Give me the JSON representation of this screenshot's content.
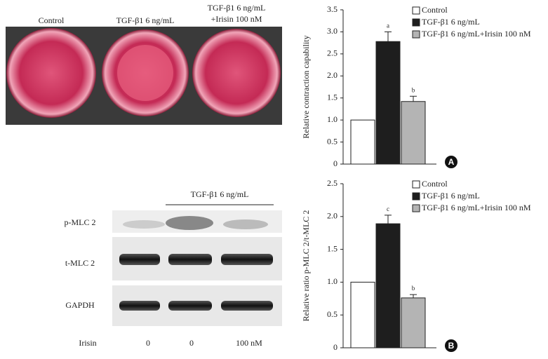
{
  "photo_labels": [
    "Control",
    "TGF-β1 6 ng/mL",
    [
      "TGF-β1 6 ng/mL",
      "+Irisin 100 nM"
    ]
  ],
  "blot": {
    "header": "TGF-β1 6 ng/mL",
    "rows": [
      "p-MLC 2",
      "t-MLC 2",
      "GAPDH"
    ],
    "treatment_label": "Irisin",
    "treatment_values": [
      "0",
      "0",
      "100 nM"
    ]
  },
  "chart_data": [
    {
      "type": "bar",
      "panel_label": "A",
      "y_label": "Relative contraction capability",
      "ylim": [
        0,
        3.5
      ],
      "yticks": [
        0,
        0.5,
        {
          "value": 1,
          "label": "1.0"
        },
        1.5,
        {
          "value": 2,
          "label": "2.0"
        },
        2.5,
        {
          "value": 3,
          "label": "3.0"
        },
        3.5
      ],
      "legend": "upper right",
      "series": [
        {
          "name": "Control",
          "color": "#ffffff",
          "values": [
            1.0
          ]
        },
        {
          "name": "TGF-β1 6 ng/mL",
          "color": "#1e1e1e",
          "values": [
            2.78
          ],
          "errors": [
            0.22
          ],
          "annotation": "a"
        },
        {
          "name": "TGF-β1 6 ng/mL+Irisin 100 nM",
          "color": "#b4b4b4",
          "values": [
            1.42
          ],
          "errors": [
            0.12
          ],
          "annotation": "b"
        }
      ]
    },
    {
      "type": "bar",
      "panel_label": "B",
      "y_label": "Relative ratio p-MLC 2/t-MLC 2",
      "ylim": [
        0,
        2.5
      ],
      "yticks": [
        0,
        0.5,
        {
          "value": 1,
          "label": "1.0"
        },
        1.5,
        {
          "value": 2,
          "label": "2.0"
        },
        2.5
      ],
      "legend": "upper right",
      "series": [
        {
          "name": "Control",
          "color": "#ffffff",
          "values": [
            1.0
          ]
        },
        {
          "name": "TGF-β1 6 ng/mL",
          "color": "#1e1e1e",
          "values": [
            1.89
          ],
          "errors": [
            0.13
          ],
          "annotation": "c"
        },
        {
          "name": "TGF-β1 6 ng/mL+Irisin 100 nM",
          "color": "#b4b4b4",
          "values": [
            0.76
          ],
          "errors": [
            0.05
          ],
          "annotation": "b"
        }
      ]
    }
  ]
}
